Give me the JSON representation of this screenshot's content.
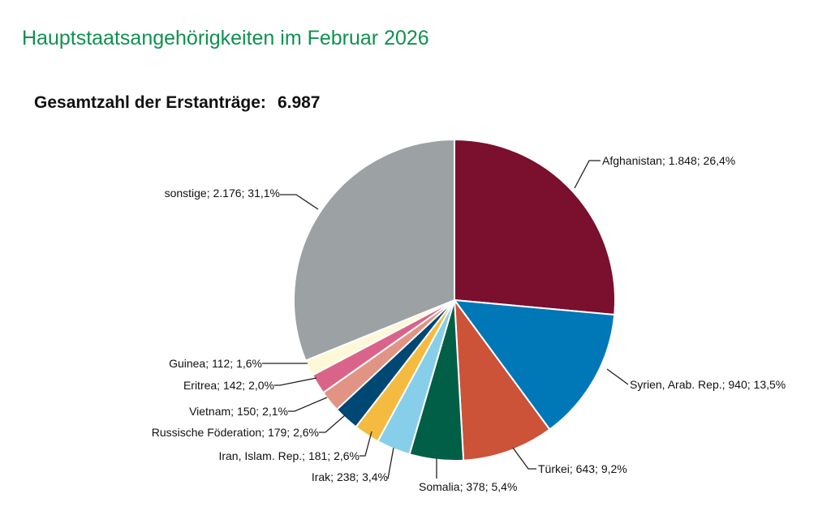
{
  "title": "Hauptstaatsangehörigkeiten im Februar 2026",
  "total_label": "Gesamtzahl der Erstanträge:",
  "total_value": "6.987",
  "chart_data": {
    "type": "pie",
    "start": "top, clockwise",
    "slices": [
      {
        "name": "Afghanistan",
        "value": 1848,
        "percent": 26.4,
        "label": "Afghanistan; 1.848; 26,4%",
        "color": "#7a0f2e"
      },
      {
        "name": "Syrien, Arab. Rep.",
        "value": 940,
        "percent": 13.5,
        "label": "Syrien, Arab. Rep.; 940; 13,5%",
        "color": "#0077b6"
      },
      {
        "name": "Türkei",
        "value": 643,
        "percent": 9.2,
        "label": "Türkei; 643; 9,2%",
        "color": "#cc5238"
      },
      {
        "name": "Somalia",
        "value": 378,
        "percent": 5.4,
        "label": "Somalia; 378; 5,4%",
        "color": "#005f46"
      },
      {
        "name": "Irak",
        "value": 238,
        "percent": 3.4,
        "label": "Irak; 238; 3,4%",
        "color": "#87ceeb"
      },
      {
        "name": "Iran, Islam. Rep.",
        "value": 181,
        "percent": 2.6,
        "label": "Iran, Islam. Rep.; 181; 2,6%",
        "color": "#f5bb40"
      },
      {
        "name": "Russische Föderation",
        "value": 179,
        "percent": 2.6,
        "label": "Russische Föderation; 179; 2,6%",
        "color": "#004874"
      },
      {
        "name": "Vietnam",
        "value": 150,
        "percent": 2.1,
        "label": "Vietnam; 150; 2,1%",
        "color": "#e19484"
      },
      {
        "name": "Eritrea",
        "value": 142,
        "percent": 2.0,
        "label": "Eritrea; 142; 2,0%",
        "color": "#da6489"
      },
      {
        "name": "Guinea",
        "value": 112,
        "percent": 1.6,
        "label": "Guinea; 112; 1,6%",
        "color": "#fdf8d8"
      },
      {
        "name": "sonstige",
        "value": 2176,
        "percent": 31.1,
        "label": "sonstige; 2.176; 31,1%",
        "color": "#9ca1a3"
      }
    ]
  }
}
